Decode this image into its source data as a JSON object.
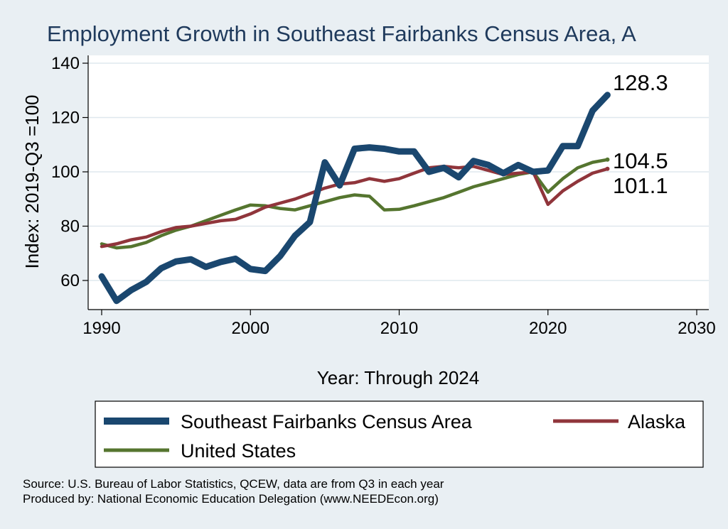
{
  "chart_data": {
    "type": "line",
    "title": "Employment Growth in Southeast Fairbanks Census Area, A",
    "xlabel": "Year: Through 2024",
    "ylabel": "Index: 2019-Q3 =100",
    "xlim": [
      1990,
      2030
    ],
    "ylim": [
      50,
      140
    ],
    "x_ticks": [
      1990,
      2000,
      2010,
      2020,
      2030
    ],
    "y_ticks": [
      60,
      80,
      100,
      120,
      140
    ],
    "grid": "horizontal",
    "legend_position": "bottom",
    "x": [
      1990,
      1991,
      1992,
      1993,
      1994,
      1995,
      1996,
      1997,
      1998,
      1999,
      2000,
      2001,
      2002,
      2003,
      2004,
      2005,
      2006,
      2007,
      2008,
      2009,
      2010,
      2011,
      2012,
      2013,
      2014,
      2015,
      2016,
      2017,
      2018,
      2019,
      2020,
      2021,
      2022,
      2023,
      2024
    ],
    "series": [
      {
        "name": "Southeast Fairbanks Census Area",
        "color": "#1a476f",
        "values": [
          61.5,
          52.5,
          56.5,
          59.5,
          64.5,
          67.0,
          67.8,
          65.0,
          66.8,
          68.0,
          64.2,
          63.5,
          69.0,
          76.5,
          81.5,
          103.5,
          95.0,
          108.5,
          109.0,
          108.5,
          107.5,
          107.5,
          100.0,
          101.5,
          98.0,
          104.0,
          102.5,
          99.5,
          102.5,
          100.0,
          100.5,
          109.5,
          109.5,
          122.5,
          128.3
        ],
        "end_label": "128.3"
      },
      {
        "name": "Alaska",
        "color": "#90353b",
        "values": [
          72.5,
          73.5,
          75.0,
          76.0,
          78.0,
          79.5,
          80.0,
          81.0,
          82.0,
          82.5,
          84.5,
          87.0,
          88.5,
          90.0,
          92.0,
          94.0,
          95.5,
          96.0,
          97.5,
          96.5,
          97.5,
          99.5,
          101.5,
          102.0,
          101.5,
          102.0,
          100.5,
          99.0,
          99.5,
          100.0,
          88.0,
          93.0,
          96.5,
          99.5,
          101.1
        ],
        "end_label": "101.1"
      },
      {
        "name": "United States",
        "color": "#55752f",
        "values": [
          73.5,
          72.0,
          72.5,
          74.0,
          76.5,
          78.5,
          80.0,
          82.0,
          84.0,
          86.0,
          87.8,
          87.5,
          86.5,
          86.0,
          87.5,
          89.0,
          90.5,
          91.5,
          91.0,
          86.0,
          86.2,
          87.5,
          89.0,
          90.5,
          92.5,
          94.5,
          96.0,
          97.5,
          99.0,
          100.0,
          92.5,
          97.5,
          101.5,
          103.5,
          104.5
        ],
        "end_label": "104.5"
      }
    ],
    "source": "Source: U.S. Bureau of Labor Statistics, QCEW, data are from Q3 in each year",
    "produced_by": "Produced by: National Economic Education Delegation (www.NEEDEcon.org)"
  }
}
